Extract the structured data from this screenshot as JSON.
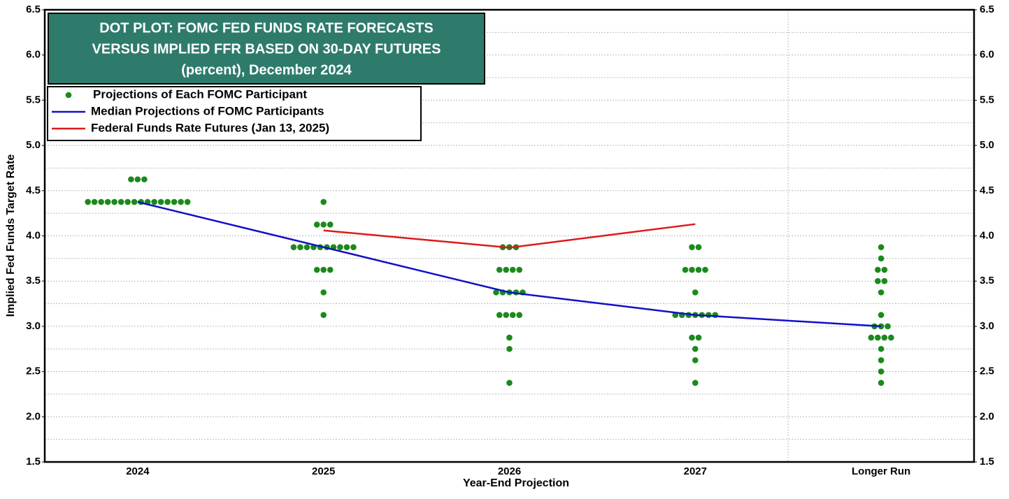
{
  "chart_data": {
    "type": "dot_plot",
    "title": [
      "DOT PLOT: FOMC FED FUNDS RATE FORECASTS",
      "VERSUS IMPLIED FFR BASED ON 30-DAY FUTURES",
      "(percent), December 2024"
    ],
    "title_color": "#2e7b6c",
    "x_label": "Year-End Projection",
    "y_label": "Implied Fed Funds Target Rate",
    "categories": [
      "2024",
      "2025",
      "2026",
      "2027",
      "Longer Run"
    ],
    "ylim": [
      1.5,
      6.5
    ],
    "yticks": [
      1.5,
      {
        "value": 2,
        "label": "2.0"
      },
      2.5,
      {
        "value": 3,
        "label": "3.0"
      },
      3.5,
      {
        "value": 4,
        "label": "4.0"
      },
      4.5,
      {
        "value": 5,
        "label": "5.0"
      },
      5.5,
      {
        "value": 6,
        "label": "6.0"
      },
      6.5
    ],
    "grid_minor": [
      1.75,
      2,
      2.25,
      2.5,
      2.75,
      3,
      3.25,
      3.5,
      3.75,
      4,
      4.25,
      4.5,
      4.75,
      5,
      5.25,
      5.5,
      5.75,
      6,
      6.25
    ],
    "grid": true,
    "right_axis": true,
    "separator_before": "Longer Run",
    "series": [
      {
        "name": "Projections of Each FOMC Participant",
        "type": "dots",
        "color": "#1a8a1a",
        "values": [
          [
            4.625,
            4.625,
            4.625,
            4.375,
            4.375,
            4.375,
            4.375,
            4.375,
            4.375,
            4.375,
            4.375,
            4.375,
            4.375,
            4.375,
            4.375,
            4.375,
            4.375,
            4.375,
            4.375
          ],
          [
            4.375,
            4.125,
            4.125,
            4.125,
            3.875,
            3.875,
            3.875,
            3.875,
            3.875,
            3.875,
            3.875,
            3.875,
            3.875,
            3.875,
            3.625,
            3.625,
            3.625,
            3.375,
            3.125
          ],
          [
            3.875,
            3.875,
            3.875,
            3.625,
            3.625,
            3.625,
            3.625,
            3.375,
            3.375,
            3.375,
            3.375,
            3.375,
            3.125,
            3.125,
            3.125,
            3.125,
            2.875,
            2.75,
            2.375
          ],
          [
            3.875,
            3.875,
            3.625,
            3.625,
            3.625,
            3.625,
            3.375,
            3.125,
            3.125,
            3.125,
            3.125,
            3.125,
            3.125,
            3.125,
            2.875,
            2.875,
            2.75,
            2.625,
            2.375
          ],
          [
            3.875,
            3.75,
            3.625,
            3.625,
            3.5,
            3.5,
            3.375,
            3.125,
            3,
            3,
            3,
            2.875,
            2.875,
            2.875,
            2.875,
            2.75,
            2.625,
            2.5,
            2.375
          ]
        ]
      },
      {
        "name": "Median Projections of FOMC Participants",
        "type": "line",
        "color": "#1010c8",
        "values": [
          4.375,
          3.875,
          3.375,
          3.125,
          3
        ]
      },
      {
        "name": "Federal Funds Rate Futures (Jan 13, 2025)",
        "type": "line",
        "color": "#dd1a1a",
        "values": [
          null,
          4.06,
          3.87,
          4.13,
          null
        ]
      }
    ]
  }
}
